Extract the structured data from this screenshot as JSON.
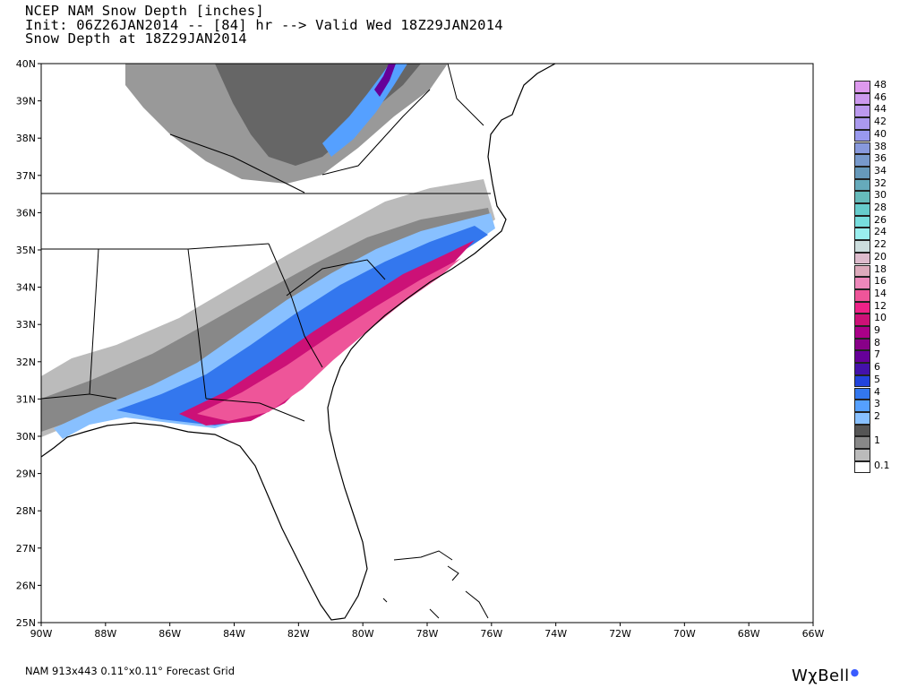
{
  "header": {
    "line1": "NCEP NAM Snow Depth [inches]",
    "line2": "Init: 06Z26JAN2014 -- [84] hr --> Valid Wed 18Z29JAN2014",
    "line3": "Snow Depth at 18Z29JAN2014"
  },
  "map": {
    "lat_labels": [
      "40N",
      "39N",
      "38N",
      "37N",
      "36N",
      "35N",
      "34N",
      "33N",
      "32N",
      "31N",
      "30N",
      "29N",
      "28N",
      "27N",
      "26N",
      "25N"
    ],
    "lon_labels": [
      "90W",
      "88W",
      "86W",
      "84W",
      "82W",
      "80W",
      "78W",
      "76W",
      "74W",
      "72W",
      "70W",
      "68W",
      "66W"
    ],
    "lat_range": [
      25,
      40
    ],
    "lon_range": [
      -90,
      -66
    ],
    "land_fill": "#ffffff",
    "border_color": "#000000"
  },
  "legend": {
    "items": [
      {
        "label": "48",
        "color": "#dd99ee"
      },
      {
        "label": "46",
        "color": "#cc99ee"
      },
      {
        "label": "44",
        "color": "#bb99ee"
      },
      {
        "label": "42",
        "color": "#aa99ee"
      },
      {
        "label": "40",
        "color": "#9999ee"
      },
      {
        "label": "38",
        "color": "#8899dd"
      },
      {
        "label": "36",
        "color": "#7799cc"
      },
      {
        "label": "34",
        "color": "#6699bb"
      },
      {
        "label": "32",
        "color": "#66aabb"
      },
      {
        "label": "30",
        "color": "#66bbbb"
      },
      {
        "label": "28",
        "color": "#66cccc"
      },
      {
        "label": "26",
        "color": "#77dddd"
      },
      {
        "label": "24",
        "color": "#99eeee"
      },
      {
        "label": "22",
        "color": "#ccdddd"
      },
      {
        "label": "20",
        "color": "#ddbbcc"
      },
      {
        "label": "18",
        "color": "#ddaabb"
      },
      {
        "label": "16",
        "color": "#ee88bb"
      },
      {
        "label": "14",
        "color": "#ee5599"
      },
      {
        "label": "12",
        "color": "#ee2288"
      },
      {
        "label": "10",
        "color": "#cc1177"
      },
      {
        "label": "9",
        "color": "#aa0088"
      },
      {
        "label": "8",
        "color": "#880088"
      },
      {
        "label": "7",
        "color": "#660099"
      },
      {
        "label": "6",
        "color": "#4411aa"
      },
      {
        "label": "5",
        "color": "#2244dd"
      },
      {
        "label": "4",
        "color": "#3377ee"
      },
      {
        "label": "3",
        "color": "#55a0ff"
      },
      {
        "label": "2",
        "color": "#88c0ff"
      },
      {
        "label": "",
        "color": "#555555"
      },
      {
        "label": "1",
        "color": "#888888"
      },
      {
        "label": "",
        "color": "#bbbbbb"
      },
      {
        "label": "0.1",
        "color": "#ffffff"
      }
    ]
  },
  "footer": {
    "grid_info": "NAM 913x443 0.11°x0.11° Forecast Grid",
    "brand": "WχBell",
    "brand_dot": "●"
  }
}
